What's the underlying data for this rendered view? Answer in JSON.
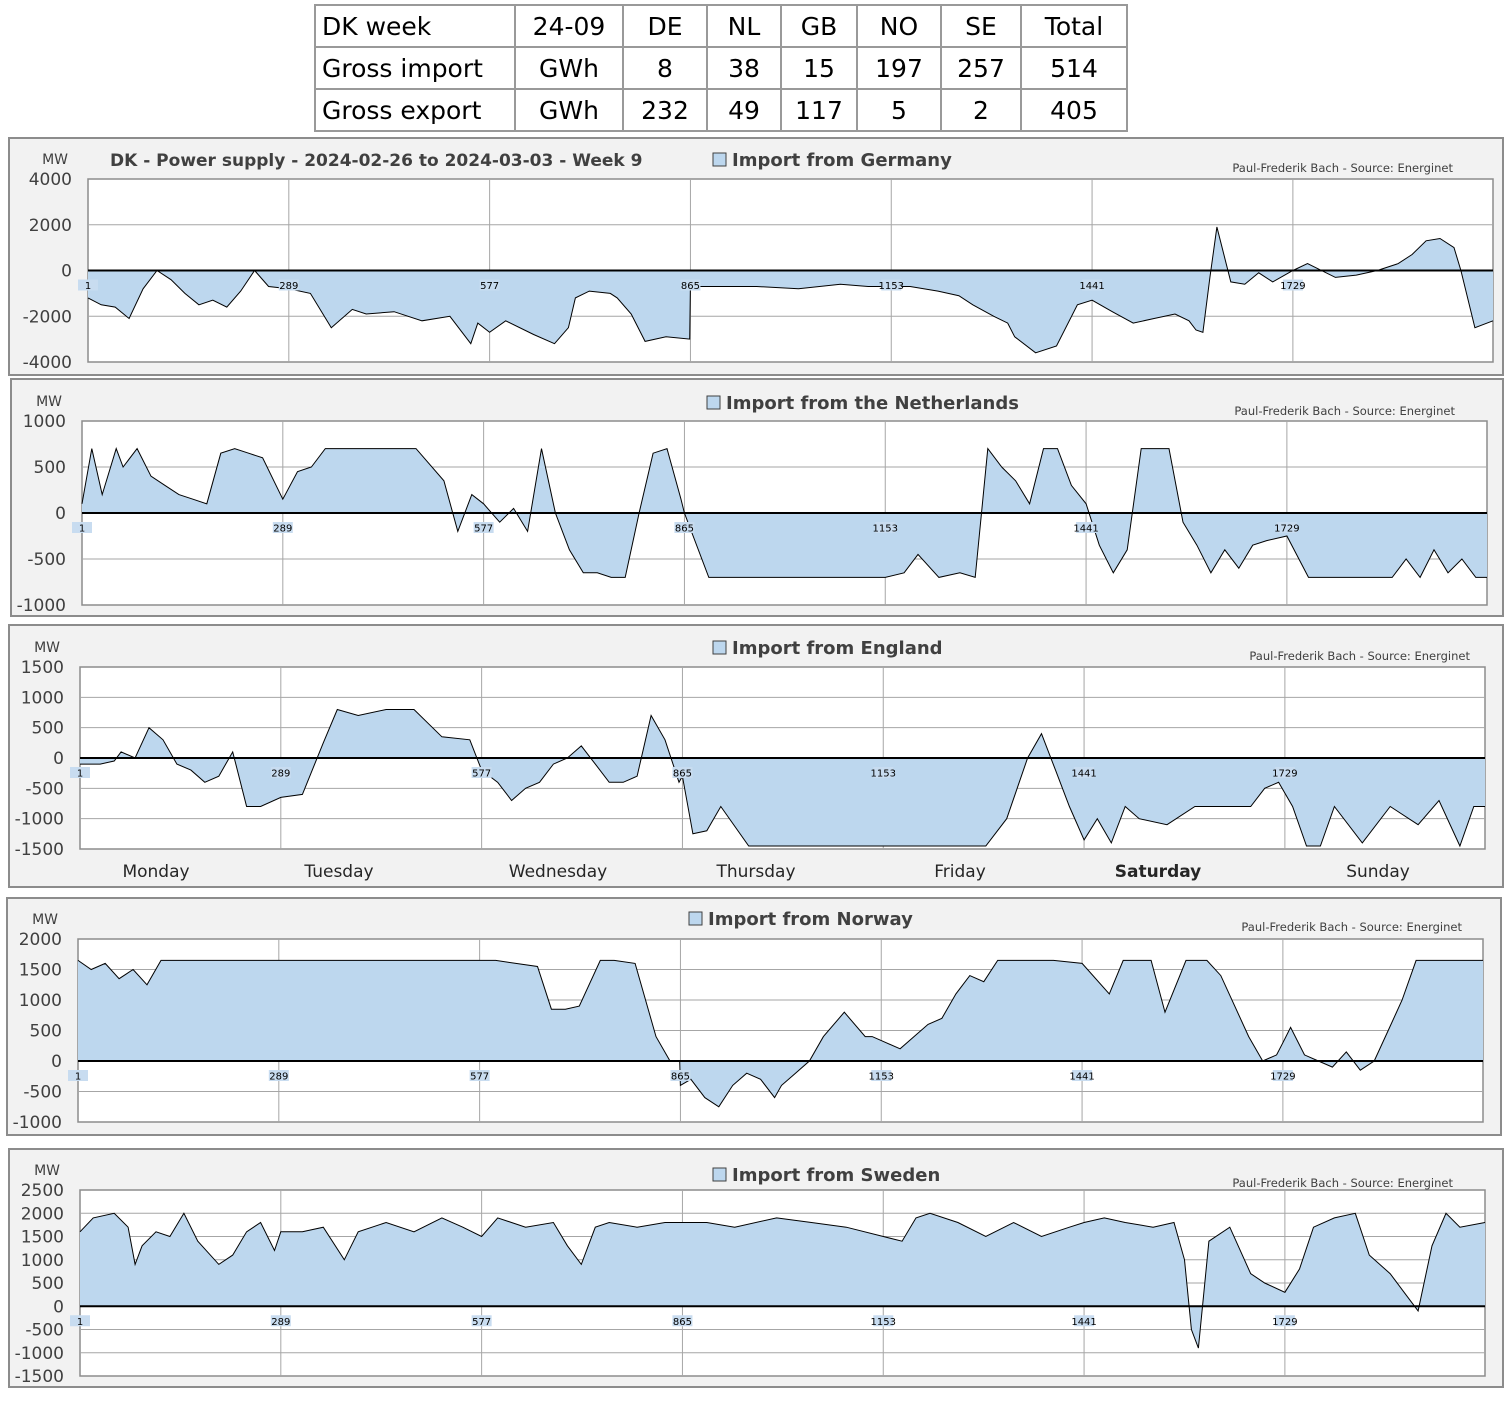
{
  "summary_table": {
    "header": [
      "DK week",
      "24-09",
      "DE",
      "NL",
      "GB",
      "NO",
      "SE",
      "Total"
    ],
    "rows": [
      [
        "Gross import",
        "GWh",
        "8",
        "38",
        "15",
        "197",
        "257",
        "514"
      ],
      [
        "Gross export",
        "GWh",
        "232",
        "49",
        "117",
        "5",
        "2",
        "405"
      ]
    ]
  },
  "chart_data": [
    {
      "type": "area",
      "id": "germany",
      "title": "DK - Power supply  - 2024-02-26 to 2024-03-03 - Week 9",
      "legend": "Import from Germany",
      "credit": "Paul-Frederik Bach - Source: Energinet",
      "ylabel": "MW",
      "ylim": [
        -4000,
        4000
      ],
      "yticks": [
        4000,
        2000,
        0,
        -2000,
        -4000
      ],
      "xlim": [
        1,
        2016
      ],
      "xticks": [
        1,
        289,
        577,
        865,
        1153,
        1441,
        1729
      ],
      "fill": "#bdd7ee",
      "x": [
        1,
        20,
        40,
        60,
        80,
        100,
        120,
        140,
        160,
        180,
        200,
        220,
        240,
        260,
        289,
        320,
        350,
        380,
        400,
        440,
        480,
        520,
        550,
        560,
        577,
        600,
        640,
        670,
        690,
        700,
        720,
        750,
        760,
        780,
        800,
        830,
        864,
        865,
        900,
        960,
        1020,
        1080,
        1120,
        1153,
        1180,
        1220,
        1250,
        1270,
        1300,
        1320,
        1330,
        1360,
        1390,
        1420,
        1441,
        1470,
        1500,
        1530,
        1560,
        1580,
        1590,
        1600,
        1610,
        1620,
        1640,
        1660,
        1680,
        1700,
        1729,
        1750,
        1790,
        1820,
        1850,
        1880,
        1900,
        1920,
        1940,
        1960,
        1970,
        1990,
        2016
      ],
      "values": [
        -1200,
        -1500,
        -1600,
        -2100,
        -800,
        0,
        -400,
        -1000,
        -1500,
        -1300,
        -1600,
        -900,
        0,
        -700,
        -800,
        -1000,
        -2500,
        -1700,
        -1900,
        -1800,
        -2200,
        -2000,
        -3200,
        -2300,
        -2700,
        -2200,
        -2800,
        -3200,
        -2500,
        -1200,
        -900,
        -1000,
        -1200,
        -1900,
        -3100,
        -2900,
        -3000,
        -700,
        -700,
        -700,
        -800,
        -600,
        -700,
        -700,
        -700,
        -900,
        -1100,
        -1500,
        -2000,
        -2300,
        -2900,
        -3600,
        -3300,
        -1500,
        -1300,
        -1800,
        -2300,
        -2100,
        -1900,
        -2200,
        -2600,
        -2700,
        -300,
        1900,
        -500,
        -600,
        -100,
        -500,
        0,
        300,
        -300,
        -200,
        0,
        300,
        700,
        1300,
        1400,
        1000,
        0,
        -2500,
        -2200
      ]
    },
    {
      "type": "area",
      "id": "netherlands",
      "title": "",
      "legend": "Import from the Netherlands",
      "credit": "Paul-Frederik Bach - Source: Energinet",
      "ylabel": "MW",
      "ylim": [
        -1000,
        1000
      ],
      "yticks": [
        1000,
        500,
        0,
        -500,
        -1000
      ],
      "xlim": [
        1,
        2016
      ],
      "xticks": [
        1,
        289,
        577,
        865,
        1153,
        1441,
        1729
      ],
      "fill": "#bdd7ee",
      "x": [
        1,
        15,
        30,
        50,
        60,
        80,
        100,
        120,
        140,
        160,
        180,
        200,
        220,
        240,
        260,
        289,
        310,
        330,
        350,
        380,
        420,
        480,
        520,
        540,
        560,
        577,
        600,
        620,
        640,
        660,
        680,
        700,
        720,
        740,
        760,
        780,
        800,
        820,
        840,
        860,
        865,
        900,
        1000,
        1100,
        1153,
        1180,
        1200,
        1230,
        1260,
        1282,
        1300,
        1320,
        1340,
        1360,
        1380,
        1400,
        1420,
        1441,
        1460,
        1480,
        1500,
        1520,
        1540,
        1560,
        1580,
        1600,
        1620,
        1640,
        1660,
        1680,
        1700,
        1729,
        1760,
        1800,
        1840,
        1880,
        1900,
        1920,
        1940,
        1960,
        1980,
        2000,
        2016
      ],
      "values": [
        100,
        700,
        200,
        700,
        500,
        700,
        400,
        300,
        200,
        150,
        100,
        650,
        700,
        650,
        600,
        150,
        450,
        500,
        700,
        700,
        700,
        700,
        350,
        -200,
        200,
        100,
        -100,
        50,
        -200,
        700,
        0,
        -400,
        -650,
        -650,
        -700,
        -700,
        0,
        650,
        700,
        150,
        0,
        -700,
        -700,
        -700,
        -700,
        -650,
        -450,
        -700,
        -650,
        -700,
        700,
        500,
        350,
        100,
        700,
        700,
        300,
        100,
        -350,
        -650,
        -400,
        700,
        700,
        700,
        -100,
        -350,
        -650,
        -400,
        -600,
        -350,
        -300,
        -250,
        -700,
        -700,
        -700,
        -700,
        -500,
        -700,
        -400,
        -650,
        -500,
        -700,
        -700
      ]
    },
    {
      "type": "area",
      "id": "england",
      "title": "",
      "legend": "Import from England",
      "credit": "Paul-Frederik Bach - Source: Energinet",
      "ylabel": "MW",
      "ylim": [
        -1500,
        1500
      ],
      "yticks": [
        1500,
        1000,
        500,
        0,
        -500,
        -1000,
        -1500
      ],
      "xlim": [
        1,
        2016
      ],
      "xticks": [
        1,
        289,
        577,
        865,
        1153,
        1441,
        1729
      ],
      "categories": [
        "Monday",
        "Tuesday",
        "Wednesday",
        "Thursday",
        "Friday",
        "Saturday",
        "Sunday"
      ],
      "fill": "#bdd7ee",
      "x": [
        1,
        30,
        50,
        60,
        80,
        100,
        120,
        140,
        160,
        180,
        200,
        220,
        240,
        260,
        289,
        320,
        350,
        370,
        400,
        440,
        480,
        520,
        560,
        577,
        600,
        620,
        640,
        660,
        680,
        700,
        720,
        740,
        760,
        780,
        800,
        820,
        840,
        860,
        865,
        880,
        900,
        920,
        960,
        1000,
        1100,
        1153,
        1200,
        1260,
        1300,
        1330,
        1360,
        1380,
        1400,
        1420,
        1441,
        1460,
        1480,
        1500,
        1520,
        1560,
        1600,
        1640,
        1680,
        1700,
        1720,
        1740,
        1760,
        1780,
        1800,
        1840,
        1880,
        1920,
        1950,
        1980,
        2000,
        2016
      ],
      "values": [
        -100,
        -100,
        -50,
        100,
        0,
        500,
        300,
        -100,
        -200,
        -400,
        -300,
        100,
        -800,
        -800,
        -650,
        -600,
        250,
        800,
        700,
        800,
        800,
        350,
        300,
        -200,
        -400,
        -700,
        -500,
        -400,
        -100,
        0,
        200,
        -100,
        -400,
        -400,
        -300,
        700,
        300,
        -400,
        -300,
        -1250,
        -1200,
        -800,
        -1450,
        -1450,
        -1450,
        -1450,
        -1450,
        -1450,
        -1450,
        -1000,
        0,
        400,
        -200,
        -800,
        -1350,
        -1000,
        -1400,
        -800,
        -1000,
        -1100,
        -800,
        -800,
        -800,
        -500,
        -400,
        -800,
        -1450,
        -1450,
        -800,
        -1400,
        -800,
        -1100,
        -700,
        -1450,
        -800,
        -800
      ]
    },
    {
      "type": "area",
      "id": "norway",
      "title": "",
      "legend": "Import from Norway",
      "credit": "Paul-Frederik Bach - Source: Energinet",
      "ylabel": "MW",
      "ylim": [
        -1000,
        2000
      ],
      "yticks": [
        2000,
        1500,
        1000,
        500,
        0,
        -500,
        -1000
      ],
      "xlim": [
        1,
        2016
      ],
      "xticks": [
        1,
        289,
        577,
        865,
        1153,
        1441,
        1729
      ],
      "fill": "#bdd7ee",
      "x": [
        1,
        20,
        40,
        60,
        80,
        100,
        120,
        130,
        150,
        160,
        180,
        200,
        289,
        400,
        500,
        600,
        660,
        680,
        700,
        720,
        750,
        770,
        800,
        830,
        850,
        864,
        865,
        880,
        900,
        920,
        940,
        960,
        980,
        1000,
        1010,
        1030,
        1050,
        1070,
        1100,
        1130,
        1140,
        1160,
        1180,
        1200,
        1220,
        1240,
        1260,
        1280,
        1300,
        1320,
        1340,
        1360,
        1380,
        1400,
        1441,
        1480,
        1500,
        1520,
        1540,
        1560,
        1590,
        1600,
        1620,
        1640,
        1680,
        1700,
        1720,
        1729,
        1740,
        1760,
        1780,
        1800,
        1820,
        1840,
        1860,
        1880,
        1900,
        1920,
        1950,
        1980,
        2016
      ],
      "values": [
        1650,
        1500,
        1600,
        1350,
        1500,
        1250,
        1650,
        1650,
        1650,
        1650,
        1650,
        1650,
        1650,
        1650,
        1650,
        1650,
        1550,
        850,
        850,
        900,
        1650,
        1650,
        1600,
        400,
        0,
        0,
        -400,
        -300,
        -600,
        -750,
        -400,
        -200,
        -300,
        -600,
        -400,
        -200,
        0,
        400,
        800,
        400,
        400,
        300,
        200,
        400,
        600,
        700,
        1100,
        1400,
        1300,
        1650,
        1650,
        1650,
        1650,
        1650,
        1600,
        1100,
        1650,
        1650,
        1650,
        800,
        1650,
        1650,
        1650,
        1400,
        400,
        0,
        100,
        300,
        550,
        100,
        0,
        -100,
        150,
        -150,
        0,
        500,
        1000,
        1650,
        1650,
        1650,
        1650
      ]
    },
    {
      "type": "area",
      "id": "sweden",
      "title": "",
      "legend": "Import from Sweden",
      "credit": "Paul-Frederik Bach - Source: Energinet",
      "ylabel": "MW",
      "ylim": [
        -1500,
        2500
      ],
      "yticks": [
        2500,
        2000,
        1500,
        1000,
        500,
        0,
        -500,
        -1000,
        -1500
      ],
      "xlim": [
        1,
        2016
      ],
      "xticks": [
        1,
        289,
        577,
        865,
        1153,
        1441,
        1729
      ],
      "fill": "#bdd7ee",
      "x": [
        1,
        20,
        50,
        70,
        80,
        90,
        110,
        130,
        150,
        170,
        200,
        220,
        240,
        260,
        280,
        289,
        320,
        350,
        380,
        400,
        440,
        480,
        520,
        550,
        577,
        600,
        640,
        680,
        700,
        720,
        740,
        760,
        800,
        840,
        865,
        900,
        940,
        1000,
        1050,
        1100,
        1153,
        1180,
        1200,
        1220,
        1260,
        1300,
        1340,
        1380,
        1420,
        1441,
        1470,
        1500,
        1540,
        1570,
        1585,
        1595,
        1605,
        1620,
        1650,
        1680,
        1700,
        1729,
        1750,
        1770,
        1800,
        1830,
        1850,
        1880,
        1900,
        1920,
        1940,
        1960,
        1980,
        2016
      ],
      "values": [
        1600,
        1900,
        2000,
        1700,
        900,
        1300,
        1600,
        1500,
        2000,
        1400,
        900,
        1100,
        1600,
        1800,
        1200,
        1600,
        1600,
        1700,
        1000,
        1600,
        1800,
        1600,
        1900,
        1700,
        1500,
        1900,
        1700,
        1800,
        1300,
        900,
        1700,
        1800,
        1700,
        1800,
        1800,
        1800,
        1700,
        1900,
        1800,
        1700,
        1500,
        1400,
        1900,
        2000,
        1800,
        1500,
        1800,
        1500,
        1700,
        1800,
        1900,
        1800,
        1700,
        1800,
        1000,
        -500,
        -900,
        1400,
        1700,
        700,
        500,
        300,
        800,
        1700,
        1900,
        2000,
        1100,
        700,
        300,
        -100,
        1300,
        2000,
        1700,
        1800
      ]
    }
  ]
}
